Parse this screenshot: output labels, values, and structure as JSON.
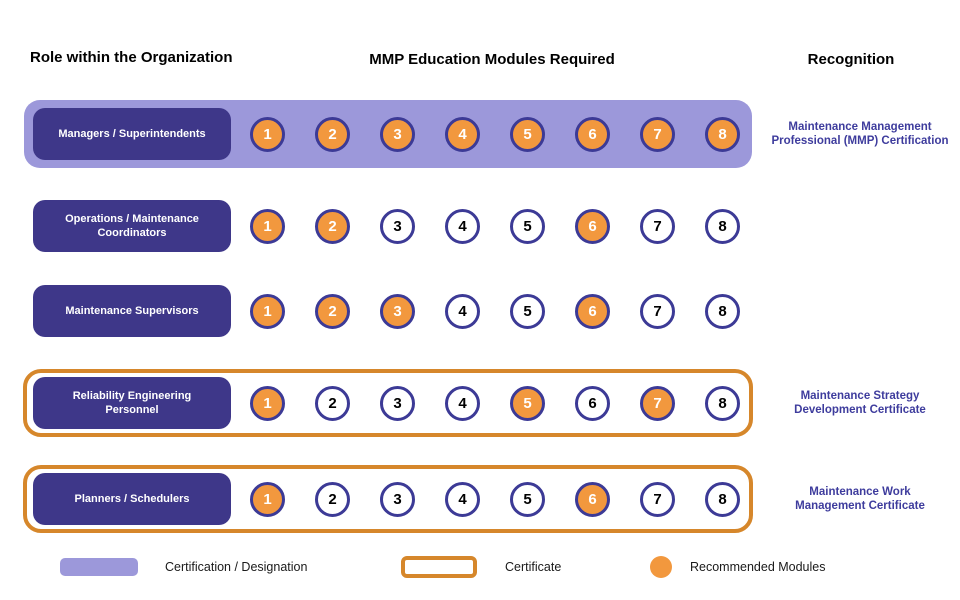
{
  "headers": {
    "role": "Role within the Organization",
    "modules": "MMP Education Modules Required",
    "recognition": "Recognition"
  },
  "module_numbers": [
    "1",
    "2",
    "3",
    "4",
    "5",
    "6",
    "7",
    "8"
  ],
  "rows": [
    {
      "role": "Managers / Superintendents",
      "highlight": "certification-band",
      "recommended": [
        1,
        2,
        3,
        4,
        5,
        6,
        7,
        8
      ],
      "recognition_lines": [
        "Maintenance Management",
        "Professional (MMP) Certification"
      ]
    },
    {
      "role": "Operations / Maintenance Coordinators",
      "highlight": "none",
      "recommended": [
        1,
        2,
        6
      ],
      "recognition_lines": []
    },
    {
      "role": "Maintenance Supervisors",
      "highlight": "none",
      "recommended": [
        1,
        2,
        3,
        6
      ],
      "recognition_lines": []
    },
    {
      "role": "Reliability Engineering Personnel",
      "highlight": "certificate-outline",
      "recommended": [
        1,
        5,
        7
      ],
      "recognition_lines": [
        "Maintenance Strategy",
        "Development Certificate"
      ]
    },
    {
      "role": "Planners / Schedulers",
      "highlight": "certificate-outline",
      "recommended": [
        1,
        6
      ],
      "recognition_lines": [
        "Maintenance Work",
        "Management Certificate"
      ]
    }
  ],
  "legend": [
    {
      "swatch": "certification-band",
      "label": "Certification / Designation"
    },
    {
      "swatch": "certificate-outline",
      "label": "Certificate"
    },
    {
      "swatch": "recommended-circle",
      "label": "Recommended Modules"
    }
  ],
  "colors": {
    "dark_purple": "#3e3789",
    "light_purple_band": "#9c98da",
    "circle_border": "#3c3a96",
    "recommended_orange": "#f2983e",
    "certificate_outline_orange": "#d6872b",
    "recognition_text": "#3e3c9d"
  }
}
